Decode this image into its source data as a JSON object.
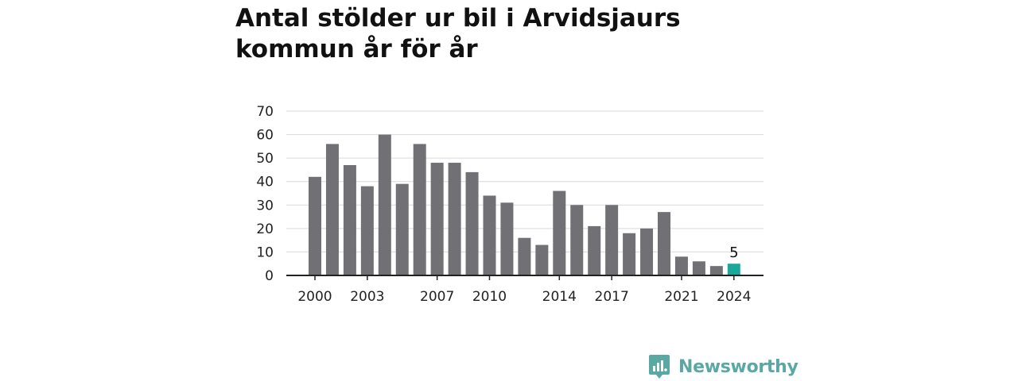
{
  "title": "Antal stölder ur bil i Arvidsjaurs kommun år för år",
  "brand": {
    "name": "Newsworthy"
  },
  "colors": {
    "bar": "#707075",
    "highlight": "#1aa89c",
    "grid": "#d9d9d9",
    "axis": "#222222",
    "brand": "#5aa8a3"
  },
  "chart_data": {
    "type": "bar",
    "title": "Antal stölder ur bil i Arvidsjaurs kommun år för år",
    "xlabel": "",
    "ylabel": "",
    "categories": [
      "2000",
      "2001",
      "2002",
      "2003",
      "2004",
      "2005",
      "2006",
      "2007",
      "2008",
      "2009",
      "2010",
      "2011",
      "2012",
      "2013",
      "2014",
      "2015",
      "2016",
      "2017",
      "2018",
      "2019",
      "2020",
      "2021",
      "2022",
      "2023",
      "2024"
    ],
    "values": [
      42,
      56,
      47,
      38,
      60,
      39,
      56,
      48,
      48,
      44,
      34,
      31,
      16,
      13,
      36,
      30,
      21,
      30,
      18,
      20,
      27,
      8,
      6,
      4,
      5
    ],
    "ylim": [
      0,
      70
    ],
    "yticks": [
      0,
      10,
      20,
      30,
      40,
      50,
      60,
      70
    ],
    "xtick_labels": [
      "2000",
      "2003",
      "2007",
      "2010",
      "2014",
      "2017",
      "2021",
      "2024"
    ],
    "highlight": {
      "category": "2024",
      "label": "5"
    },
    "grid": true,
    "legend": "none"
  }
}
